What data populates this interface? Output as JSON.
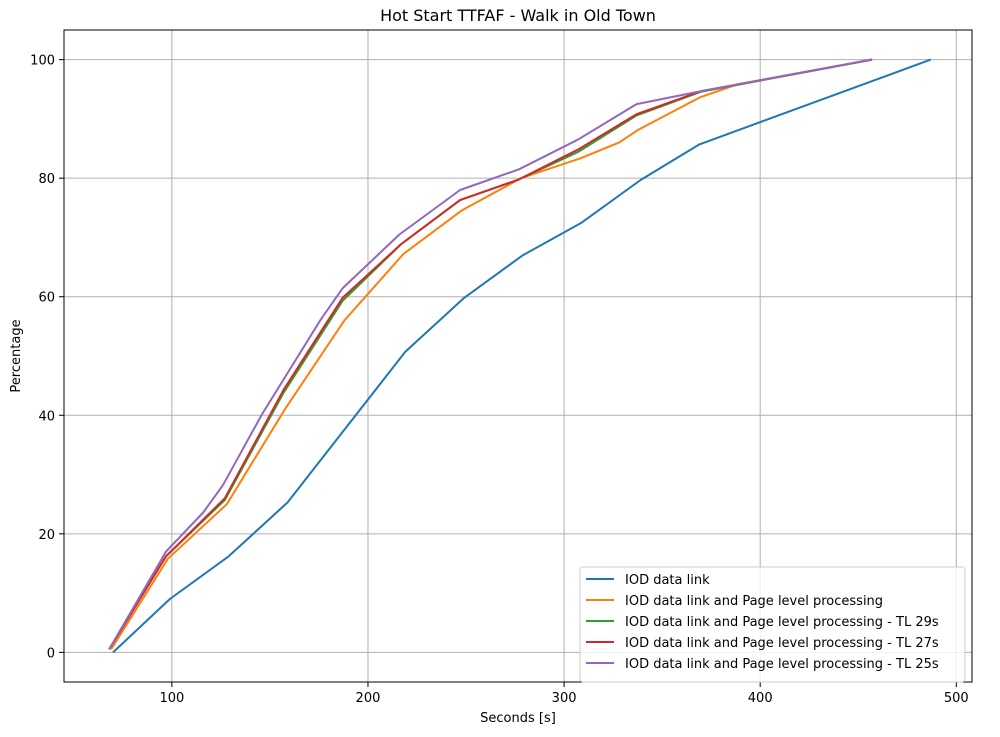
{
  "chart_data": {
    "type": "line",
    "title": "Hot Start TTFAF - Walk in Old Town",
    "xlabel": "Seconds [s]",
    "ylabel": "Percentage",
    "xlim": [
      45,
      508
    ],
    "ylim": [
      -5,
      105
    ],
    "xticks": [
      100,
      200,
      300,
      400,
      500
    ],
    "yticks": [
      0,
      20,
      40,
      60,
      80,
      100
    ],
    "grid": true,
    "legend_position": "lower-right",
    "series": [
      {
        "name": "IOD data link",
        "color": "#1f77b4",
        "points": [
          [
            70,
            0
          ],
          [
            99,
            9
          ],
          [
            129,
            16.2
          ],
          [
            159,
            25.3
          ],
          [
            189,
            38
          ],
          [
            219,
            50.7
          ],
          [
            249,
            59.8
          ],
          [
            279,
            67
          ],
          [
            309,
            72.5
          ],
          [
            339,
            79.7
          ],
          [
            369,
            85.7
          ],
          [
            487,
            100
          ]
        ]
      },
      {
        "name": "IOD data link and Page level processing",
        "color": "#ff7f0e",
        "points": [
          [
            69,
            0.5
          ],
          [
            98,
            15.8
          ],
          [
            128,
            25
          ],
          [
            158,
            41.2
          ],
          [
            188,
            56
          ],
          [
            218,
            67.2
          ],
          [
            248,
            74.6
          ],
          [
            278,
            80
          ],
          [
            308,
            83.3
          ],
          [
            328,
            86
          ],
          [
            338,
            88.2
          ],
          [
            369,
            93.6
          ],
          [
            388,
            95.8
          ],
          [
            457,
            100
          ]
        ]
      },
      {
        "name": "IOD data link and Page level processing - TL 29s",
        "color": "#2ca02c",
        "points": [
          [
            68,
            0.5
          ],
          [
            97,
            16.2
          ],
          [
            127,
            25.7
          ],
          [
            157,
            43.8
          ],
          [
            187,
            59.3
          ],
          [
            217,
            68.9
          ],
          [
            247,
            76.3
          ],
          [
            277,
            79.8
          ],
          [
            307,
            84.4
          ],
          [
            337,
            90.6
          ],
          [
            370,
            94.6
          ],
          [
            457,
            100
          ]
        ]
      },
      {
        "name": "IOD data link and Page level processing - TL 27s",
        "color": "#d62728",
        "points": [
          [
            68,
            0.5
          ],
          [
            97,
            16.2
          ],
          [
            127,
            26
          ],
          [
            157,
            44.3
          ],
          [
            187,
            59.8
          ],
          [
            217,
            68.9
          ],
          [
            247,
            76.3
          ],
          [
            277,
            79.8
          ],
          [
            307,
            84.8
          ],
          [
            337,
            90.8
          ],
          [
            370,
            94.7
          ],
          [
            457,
            100
          ]
        ]
      },
      {
        "name": "IOD data link and Page level processing - TL 25s",
        "color": "#9467bd",
        "points": [
          [
            68,
            0.5
          ],
          [
            97,
            17
          ],
          [
            116,
            23.6
          ],
          [
            126,
            28.2
          ],
          [
            146,
            40.2
          ],
          [
            176,
            56.2
          ],
          [
            187,
            61.4
          ],
          [
            216,
            70.5
          ],
          [
            247,
            78
          ],
          [
            277,
            81.5
          ],
          [
            307,
            86.5
          ],
          [
            337,
            92.5
          ],
          [
            370,
            94.7
          ],
          [
            457,
            100
          ]
        ]
      }
    ]
  }
}
